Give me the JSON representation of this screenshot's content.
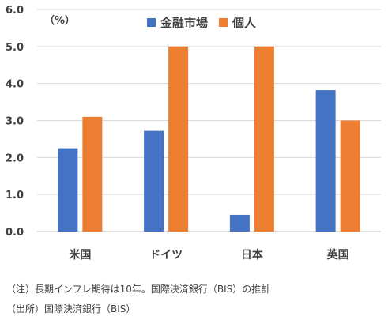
{
  "chart_data": {
    "type": "bar",
    "unit_label": "（%）",
    "categories": [
      "米国",
      "ドイツ",
      "日本",
      "英国"
    ],
    "series": [
      {
        "name": "金融市場",
        "color": "#4472C4",
        "values": [
          2.25,
          2.72,
          0.45,
          3.82
        ]
      },
      {
        "name": "個人",
        "color": "#ED7D31",
        "values": [
          3.1,
          5.0,
          5.0,
          3.0
        ]
      }
    ],
    "ylim": [
      0,
      6
    ],
    "yticks": [
      "0.0",
      "1.0",
      "2.0",
      "3.0",
      "4.0",
      "5.0",
      "6.0"
    ],
    "grid": true,
    "legend_position": "top"
  },
  "notes": {
    "note1": "（注）長期インフレ期待は10年。国際決済銀行（BIS）の推計",
    "note2": "（出所）国際決済銀行（BIS）"
  }
}
